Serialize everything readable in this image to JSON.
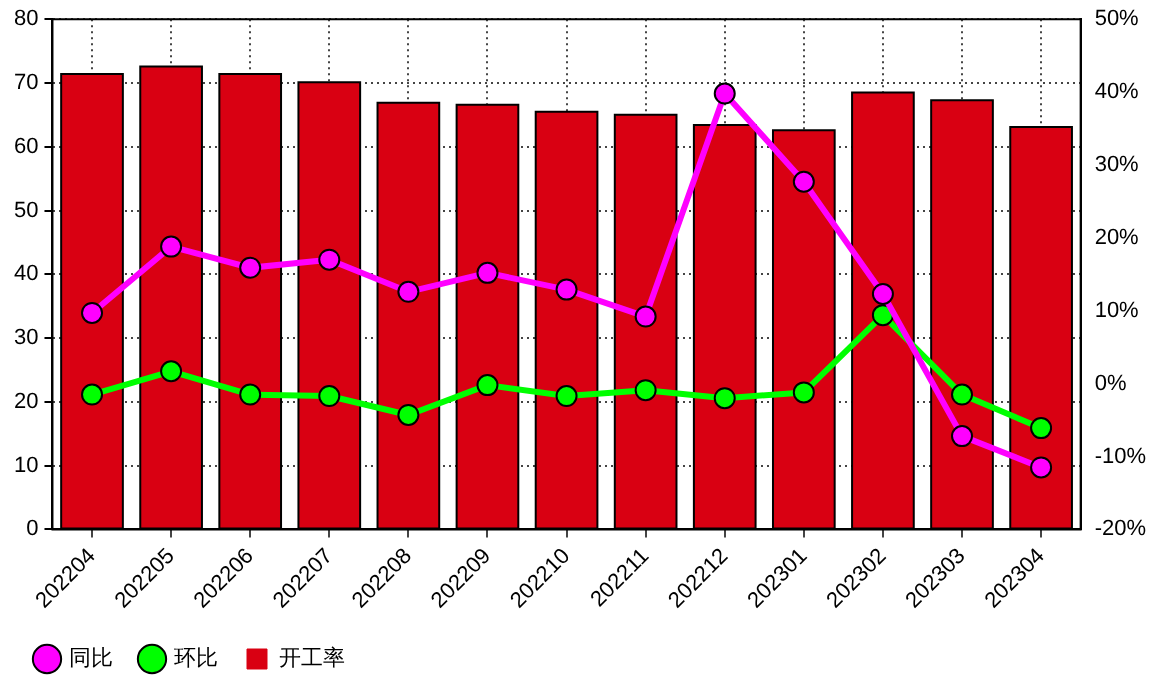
{
  "chart_data": {
    "type": "bar",
    "categories": [
      "202204",
      "202205",
      "202206",
      "202207",
      "202208",
      "202209",
      "202210",
      "202211",
      "202212",
      "202301",
      "202302",
      "202303",
      "202304"
    ],
    "series": [
      {
        "name": "同比",
        "type": "line",
        "axis": "y2",
        "color": "#ff00ff",
        "marker": "circle",
        "values": [
          9.7,
          18.8,
          15.9,
          17.0,
          12.6,
          15.2,
          12.9,
          9.2,
          39.8,
          27.7,
          12.3,
          -7.2,
          -11.5
        ]
      },
      {
        "name": "环比",
        "type": "line",
        "axis": "y2",
        "color": "#00ff00",
        "marker": "circle",
        "values": [
          -1.5,
          1.7,
          -1.5,
          -1.7,
          -4.3,
          -0.2,
          -1.7,
          -0.9,
          -2.0,
          -1.2,
          9.4,
          -1.5,
          -6.1
        ]
      },
      {
        "name": "开工率",
        "color": "#d90012",
        "values": [
          71.4,
          72.6,
          71.4,
          70.1,
          66.9,
          66.6,
          65.5,
          65.0,
          63.4,
          62.6,
          68.5,
          67.3,
          63.1
        ]
      }
    ],
    "ylim": [
      0,
      80
    ],
    "yticks": [
      0,
      10,
      20,
      30,
      40,
      50,
      60,
      70,
      80
    ],
    "y2lim": [
      -20,
      50
    ],
    "y2ticks": [
      {
        "value": -20,
        "label": "-20%"
      },
      {
        "value": -10,
        "label": "-10%"
      },
      {
        "value": 0,
        "label": "0%"
      },
      {
        "value": 10,
        "label": "10%"
      },
      {
        "value": 20,
        "label": "20%"
      },
      {
        "value": 30,
        "label": "30%"
      },
      {
        "value": 40,
        "label": "40%"
      },
      {
        "value": 50,
        "label": "50%"
      }
    ],
    "grid": true,
    "legend": "bottom left",
    "line_style": "solid"
  }
}
